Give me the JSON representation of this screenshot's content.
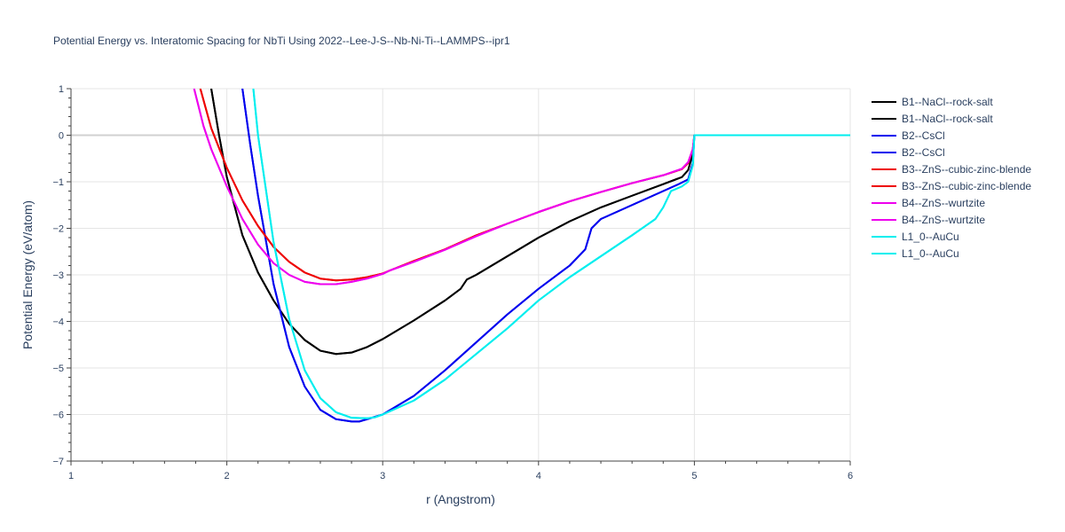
{
  "chart_data": {
    "type": "line",
    "title": "Potential Energy vs. Interatomic Spacing for NbTi Using 2022--Lee-J-S--Nb-Ni-Ti--LAMMPS--ipr1",
    "xlabel": "r (Angstrom)",
    "ylabel": "Potential Energy (eV/atom)",
    "xlim": [
      1,
      6
    ],
    "ylim": [
      -7,
      1
    ],
    "xticks": [
      1,
      2,
      3,
      4,
      5,
      6
    ],
    "yticks": [
      1,
      0,
      -1,
      -2,
      -3,
      -4,
      -5,
      -6,
      -7
    ],
    "grid": true,
    "legend_position": "right",
    "series": [
      {
        "name": "B1--NaCl--rock-salt",
        "color": "#000000",
        "x": [
          1.9,
          1.95,
          2.0,
          2.1,
          2.2,
          2.3,
          2.4,
          2.5,
          2.6,
          2.7,
          2.8,
          2.9,
          3.0,
          3.2,
          3.4,
          3.5,
          3.54,
          3.6,
          3.8,
          4.0,
          4.2,
          4.4,
          4.6,
          4.8,
          4.92,
          4.96,
          4.99,
          5.0,
          6.0
        ],
        "y": [
          1.0,
          0.0,
          -0.9,
          -2.15,
          -2.95,
          -3.55,
          -4.05,
          -4.4,
          -4.63,
          -4.7,
          -4.67,
          -4.55,
          -4.38,
          -3.98,
          -3.55,
          -3.3,
          -3.1,
          -3.0,
          -2.6,
          -2.2,
          -1.85,
          -1.55,
          -1.3,
          -1.05,
          -0.9,
          -0.75,
          -0.4,
          0.0,
          0.0
        ]
      },
      {
        "name": "B1--NaCl--rock-salt",
        "color": "#000000",
        "x": [
          1.9,
          1.95,
          2.0,
          2.1,
          2.2,
          2.3,
          2.4,
          2.5,
          2.6,
          2.7,
          2.8,
          2.9,
          3.0,
          3.2,
          3.4,
          3.5,
          3.54,
          3.6,
          3.8,
          4.0,
          4.2,
          4.4,
          4.6,
          4.8,
          4.92,
          4.96,
          4.99,
          5.0,
          6.0
        ],
        "y": [
          1.0,
          0.0,
          -0.9,
          -2.15,
          -2.95,
          -3.55,
          -4.05,
          -4.4,
          -4.63,
          -4.7,
          -4.67,
          -4.55,
          -4.38,
          -3.98,
          -3.55,
          -3.3,
          -3.1,
          -3.0,
          -2.6,
          -2.2,
          -1.85,
          -1.55,
          -1.3,
          -1.05,
          -0.9,
          -0.75,
          -0.4,
          0.0,
          0.0
        ]
      },
      {
        "name": "B2--CsCl",
        "color": "#0000ee",
        "x": [
          2.1,
          2.15,
          2.2,
          2.3,
          2.4,
          2.5,
          2.6,
          2.7,
          2.8,
          2.85,
          2.9,
          3.0,
          3.2,
          3.4,
          3.6,
          3.8,
          4.0,
          4.2,
          4.3,
          4.34,
          4.4,
          4.6,
          4.8,
          4.9,
          4.96,
          4.99,
          5.0,
          6.0
        ],
        "y": [
          1.0,
          -0.2,
          -1.3,
          -3.2,
          -4.55,
          -5.4,
          -5.9,
          -6.1,
          -6.15,
          -6.15,
          -6.1,
          -6.0,
          -5.6,
          -5.05,
          -4.45,
          -3.85,
          -3.3,
          -2.8,
          -2.45,
          -2.0,
          -1.8,
          -1.5,
          -1.2,
          -1.05,
          -0.95,
          -0.6,
          0.0,
          0.0
        ]
      },
      {
        "name": "B2--CsCl",
        "color": "#0000ee",
        "x": [
          2.1,
          2.15,
          2.2,
          2.3,
          2.4,
          2.5,
          2.6,
          2.7,
          2.8,
          2.85,
          2.9,
          3.0,
          3.2,
          3.4,
          3.6,
          3.8,
          4.0,
          4.2,
          4.3,
          4.34,
          4.4,
          4.6,
          4.8,
          4.9,
          4.96,
          4.99,
          5.0,
          6.0
        ],
        "y": [
          1.0,
          -0.2,
          -1.3,
          -3.2,
          -4.55,
          -5.4,
          -5.9,
          -6.1,
          -6.15,
          -6.15,
          -6.1,
          -6.0,
          -5.6,
          -5.05,
          -4.45,
          -3.85,
          -3.3,
          -2.8,
          -2.45,
          -2.0,
          -1.8,
          -1.5,
          -1.2,
          -1.05,
          -0.95,
          -0.6,
          0.0,
          0.0
        ]
      },
      {
        "name": "B3--ZnS--cubic-zinc-blende",
        "color": "#ee0000",
        "x": [
          1.83,
          1.9,
          2.0,
          2.1,
          2.2,
          2.3,
          2.4,
          2.5,
          2.6,
          2.7,
          2.8,
          2.9,
          3.0,
          3.05,
          3.2,
          3.4,
          3.6,
          3.8,
          4.0,
          4.2,
          4.4,
          4.6,
          4.8,
          4.92,
          4.96,
          4.99,
          5.0,
          6.0
        ],
        "y": [
          1.0,
          0.15,
          -0.7,
          -1.4,
          -1.95,
          -2.4,
          -2.72,
          -2.95,
          -3.08,
          -3.12,
          -3.1,
          -3.05,
          -2.97,
          -2.9,
          -2.7,
          -2.45,
          -2.15,
          -1.9,
          -1.65,
          -1.42,
          -1.22,
          -1.03,
          -0.86,
          -0.73,
          -0.6,
          -0.3,
          0.0,
          0.0
        ]
      },
      {
        "name": "B3--ZnS--cubic-zinc-blende",
        "color": "#ee0000",
        "x": [
          1.83,
          1.9,
          2.0,
          2.1,
          2.2,
          2.3,
          2.4,
          2.5,
          2.6,
          2.7,
          2.8,
          2.9,
          3.0,
          3.05,
          3.2,
          3.4,
          3.6,
          3.8,
          4.0,
          4.2,
          4.4,
          4.6,
          4.8,
          4.92,
          4.96,
          4.99,
          5.0,
          6.0
        ],
        "y": [
          1.0,
          0.15,
          -0.7,
          -1.4,
          -1.95,
          -2.4,
          -2.72,
          -2.95,
          -3.08,
          -3.12,
          -3.1,
          -3.05,
          -2.97,
          -2.9,
          -2.7,
          -2.45,
          -2.15,
          -1.9,
          -1.65,
          -1.42,
          -1.22,
          -1.03,
          -0.86,
          -0.73,
          -0.6,
          -0.3,
          0.0,
          0.0
        ]
      },
      {
        "name": "B4--ZnS--wurtzite",
        "color": "#ee00ee",
        "x": [
          1.79,
          1.85,
          1.9,
          2.0,
          2.1,
          2.2,
          2.3,
          2.4,
          2.5,
          2.6,
          2.7,
          2.8,
          2.9,
          3.0,
          3.05,
          3.2,
          3.4,
          3.6,
          3.8,
          4.0,
          4.2,
          4.4,
          4.6,
          4.8,
          4.92,
          4.96,
          4.99,
          5.0,
          6.0
        ],
        "y": [
          1.0,
          0.2,
          -0.3,
          -1.1,
          -1.8,
          -2.35,
          -2.75,
          -3.0,
          -3.15,
          -3.2,
          -3.2,
          -3.15,
          -3.08,
          -2.98,
          -2.9,
          -2.72,
          -2.46,
          -2.17,
          -1.9,
          -1.65,
          -1.42,
          -1.22,
          -1.03,
          -0.86,
          -0.72,
          -0.58,
          -0.3,
          0.0,
          0.0
        ]
      },
      {
        "name": "B4--ZnS--wurtzite",
        "color": "#ee00ee",
        "x": [
          1.79,
          1.85,
          1.9,
          2.0,
          2.1,
          2.2,
          2.3,
          2.4,
          2.5,
          2.6,
          2.7,
          2.8,
          2.9,
          3.0,
          3.05,
          3.2,
          3.4,
          3.6,
          3.8,
          4.0,
          4.2,
          4.4,
          4.6,
          4.8,
          4.92,
          4.96,
          4.99,
          5.0,
          6.0
        ],
        "y": [
          1.0,
          0.2,
          -0.3,
          -1.1,
          -1.8,
          -2.35,
          -2.75,
          -3.0,
          -3.15,
          -3.2,
          -3.2,
          -3.15,
          -3.08,
          -2.98,
          -2.9,
          -2.72,
          -2.46,
          -2.17,
          -1.9,
          -1.65,
          -1.42,
          -1.22,
          -1.03,
          -0.86,
          -0.72,
          -0.58,
          -0.3,
          0.0,
          0.0
        ]
      },
      {
        "name": "L1_0--AuCu",
        "color": "#00eeee",
        "x": [
          2.17,
          2.2,
          2.3,
          2.4,
          2.5,
          2.6,
          2.7,
          2.8,
          2.9,
          2.95,
          3.0,
          3.2,
          3.4,
          3.6,
          3.8,
          4.0,
          4.2,
          4.4,
          4.6,
          4.75,
          4.8,
          4.85,
          4.92,
          4.96,
          4.99,
          5.0,
          6.0
        ],
        "y": [
          1.0,
          0.0,
          -2.3,
          -3.95,
          -5.05,
          -5.65,
          -5.95,
          -6.07,
          -6.08,
          -6.06,
          -6.0,
          -5.7,
          -5.25,
          -4.7,
          -4.15,
          -3.55,
          -3.05,
          -2.6,
          -2.15,
          -1.8,
          -1.55,
          -1.2,
          -1.1,
          -1.0,
          -0.65,
          0.0,
          0.0
        ]
      },
      {
        "name": "L1_0--AuCu",
        "color": "#00eeee",
        "x": [
          2.17,
          2.2,
          2.3,
          2.4,
          2.5,
          2.6,
          2.7,
          2.8,
          2.9,
          2.95,
          3.0,
          3.2,
          3.4,
          3.6,
          3.8,
          4.0,
          4.2,
          4.4,
          4.6,
          4.75,
          4.8,
          4.85,
          4.92,
          4.96,
          4.99,
          5.0,
          6.0
        ],
        "y": [
          1.0,
          0.0,
          -2.3,
          -3.95,
          -5.05,
          -5.65,
          -5.95,
          -6.07,
          -6.08,
          -6.06,
          -6.0,
          -5.7,
          -5.25,
          -4.7,
          -4.15,
          -3.55,
          -3.05,
          -2.6,
          -2.15,
          -1.8,
          -1.55,
          -1.2,
          -1.1,
          -1.0,
          -0.65,
          0.0,
          0.0
        ]
      }
    ]
  }
}
